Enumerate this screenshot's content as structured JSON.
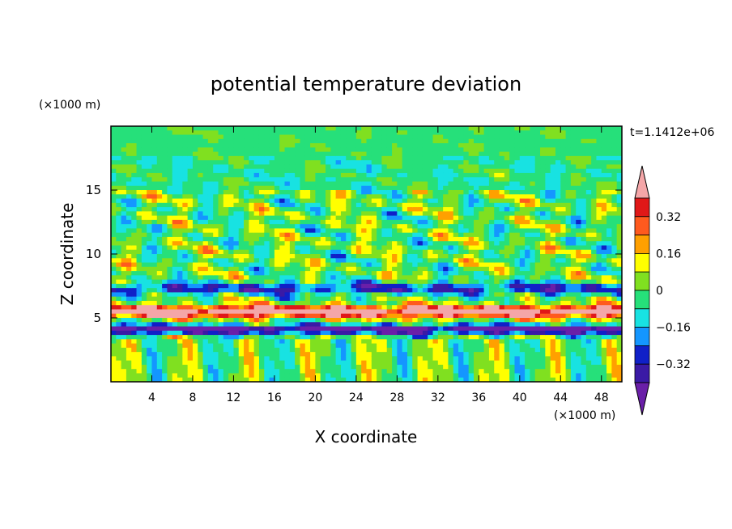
{
  "chart_data": {
    "type": "heatmap",
    "title": "potential temperature deviation",
    "xlabel": "X coordinate",
    "ylabel": "Z coordinate",
    "x_unit": "(×1000 m)",
    "y_unit": "(×1000 m)",
    "time_label": "t=1.1412e+06",
    "xlim": [
      0,
      50
    ],
    "ylim": [
      0,
      20
    ],
    "x_ticks": [
      4,
      8,
      12,
      16,
      20,
      24,
      28,
      32,
      36,
      40,
      44,
      48
    ],
    "y_ticks": [
      5,
      10,
      15
    ],
    "colorbar": {
      "labels": [
        "0.32",
        "0.16",
        "0",
        "−0.16",
        "−0.32"
      ],
      "label_values": [
        0.32,
        0.16,
        0,
        -0.16,
        -0.32
      ],
      "levels": [
        -0.4,
        -0.32,
        -0.24,
        -0.16,
        -0.08,
        0,
        0.08,
        0.16,
        0.24,
        0.32,
        0.4
      ],
      "colors": [
        "#6a1fa8",
        "#3a1aa5",
        "#1020c8",
        "#1496ff",
        "#18e2e2",
        "#26e07a",
        "#80e020",
        "#ffff00",
        "#ffa000",
        "#ff5a1e",
        "#e01818",
        "#f4a6a8"
      ],
      "extend": "both"
    },
    "grid": false
  }
}
